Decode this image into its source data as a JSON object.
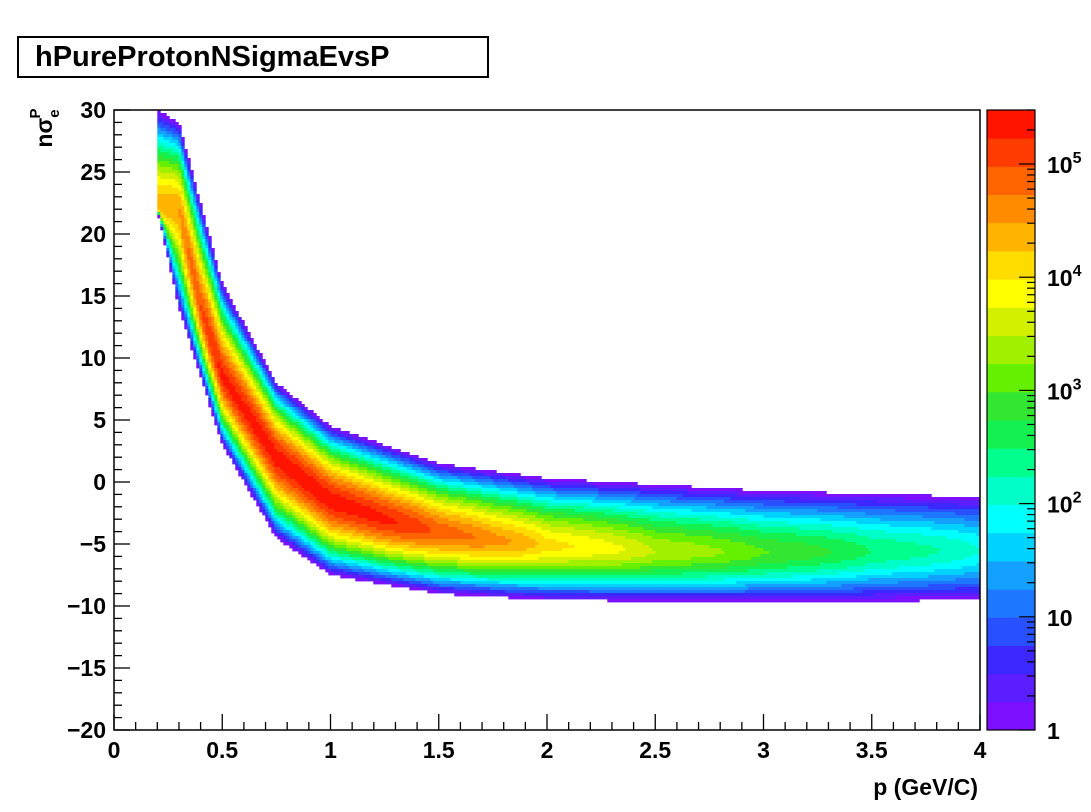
{
  "chart_data": {
    "type": "heatmap",
    "title": "hPureProtonNSigmaEvsP",
    "xlabel": "p (GeV/C)",
    "ylabel": "nσ_e^P",
    "ylabel_parts": {
      "main": "nσ",
      "sub": "e",
      "sup": "P"
    },
    "xlim": [
      0,
      4
    ],
    "ylim": [
      -20,
      30
    ],
    "x_ticks": [
      0,
      0.5,
      1,
      1.5,
      2,
      2.5,
      3,
      3.5,
      4
    ],
    "x_tick_labels": [
      "0",
      "0.5",
      "1",
      "1.5",
      "2",
      "2.5",
      "3",
      "3.5",
      "4"
    ],
    "y_ticks": [
      -20,
      -15,
      -10,
      -5,
      0,
      5,
      10,
      15,
      20,
      25,
      30
    ],
    "y_tick_labels": [
      "−20",
      "−15",
      "−10",
      "−5",
      "0",
      "5",
      "10",
      "15",
      "20",
      "25",
      "30"
    ],
    "colorbar": {
      "scale": "log",
      "range": [
        1,
        300000
      ],
      "tick_values": [
        1,
        10,
        100,
        1000,
        10000,
        100000
      ],
      "tick_labels": [
        {
          "base": "1",
          "exp": ""
        },
        {
          "base": "10",
          "exp": ""
        },
        {
          "base": "10",
          "exp": "2"
        },
        {
          "base": "10",
          "exp": "3"
        },
        {
          "base": "10",
          "exp": "4"
        },
        {
          "base": "10",
          "exp": "5"
        }
      ],
      "palette": [
        "#7d0fff",
        "#5a1eff",
        "#3c28ff",
        "#2850ff",
        "#1e78ff",
        "#14a0ff",
        "#00d2ff",
        "#00ffff",
        "#00ffc8",
        "#00ff8c",
        "#14f050",
        "#32e632",
        "#64f000",
        "#a0f000",
        "#d2f000",
        "#ffff00",
        "#ffdc00",
        "#ffb400",
        "#ff8c00",
        "#ff6400",
        "#ff3c00",
        "#ff1400"
      ]
    },
    "band_ridge": [
      {
        "p": 0.3,
        "nsigma": 22,
        "counts": 30000
      },
      {
        "p": 0.4,
        "nsigma": 14,
        "counts": 100000
      },
      {
        "p": 0.5,
        "nsigma": 8.5,
        "counts": 200000
      },
      {
        "p": 0.75,
        "nsigma": 2,
        "counts": 250000
      },
      {
        "p": 1.0,
        "nsigma": -1.5,
        "counts": 250000
      },
      {
        "p": 1.25,
        "nsigma": -3,
        "counts": 200000
      },
      {
        "p": 1.5,
        "nsigma": -4,
        "counts": 80000
      },
      {
        "p": 1.75,
        "nsigma": -4.7,
        "counts": 40000
      },
      {
        "p": 2.0,
        "nsigma": -5.1,
        "counts": 12000
      },
      {
        "p": 2.5,
        "nsigma": -5.6,
        "counts": 3000
      },
      {
        "p": 3.0,
        "nsigma": -5.7,
        "counts": 1000
      },
      {
        "p": 3.5,
        "nsigma": -5.6,
        "counts": 300
      },
      {
        "p": 4.0,
        "nsigma": -5.5,
        "counts": 100
      }
    ],
    "band_envelope": {
      "description_free": true,
      "upper": [
        [
          0.2,
          30
        ],
        [
          0.3,
          29
        ],
        [
          0.5,
          16
        ],
        [
          0.75,
          8
        ],
        [
          1.0,
          4.5
        ],
        [
          1.5,
          1.5
        ],
        [
          2.0,
          0.3
        ],
        [
          3.0,
          -0.7
        ],
        [
          4.0,
          -1.2
        ]
      ],
      "lower": [
        [
          0.2,
          22
        ],
        [
          0.3,
          14
        ],
        [
          0.5,
          3
        ],
        [
          0.75,
          -4.5
        ],
        [
          1.0,
          -7.5
        ],
        [
          1.5,
          -9
        ],
        [
          2.0,
          -9.5
        ],
        [
          3.0,
          -9.7
        ],
        [
          4.0,
          -9.5
        ]
      ]
    }
  }
}
